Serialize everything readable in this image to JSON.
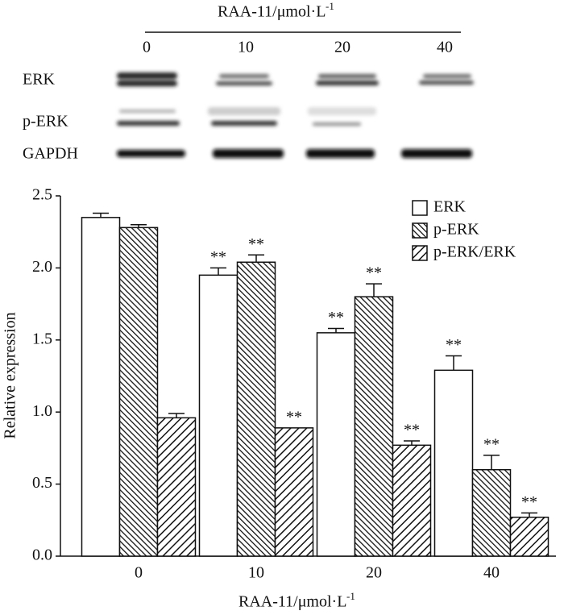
{
  "blot": {
    "title": "RAA-11/μmol·L",
    "title_sup": "-1",
    "lanes": [
      "0",
      "10",
      "20",
      "40"
    ],
    "rows": [
      "ERK",
      "p-ERK",
      "GAPDH"
    ]
  },
  "chart_data": {
    "type": "bar",
    "categories": [
      "0",
      "10",
      "20",
      "40"
    ],
    "x_label": "RAA-11/μmol·L",
    "x_label_sup": "-1",
    "y_label": "Relative expression",
    "ylim": [
      0,
      2.5
    ],
    "yticks": [
      {
        "value": 0,
        "label": "0.0"
      },
      {
        "value": 0.5,
        "label": "0.5"
      },
      {
        "value": 1,
        "label": "1.0"
      },
      {
        "value": 1.5,
        "label": "1.5"
      },
      {
        "value": 2,
        "label": "2.0"
      },
      {
        "value": 2.5,
        "label": "2.5"
      }
    ],
    "legend": "upper right",
    "series": [
      {
        "name": "ERK",
        "color": "#ffffff",
        "hatch": "none",
        "values": [
          2.35,
          1.95,
          1.55,
          1.29
        ],
        "errors": [
          0.03,
          0.05,
          0.03,
          0.1
        ],
        "annotations": [
          null,
          "**",
          "**",
          "**"
        ]
      },
      {
        "name": "p-ERK",
        "color": "#111111",
        "hatch": "backslash",
        "values": [
          2.28,
          2.04,
          1.8,
          0.6
        ],
        "errors": [
          0.02,
          0.05,
          0.09,
          0.1
        ],
        "annotations": [
          null,
          "**",
          "**",
          "**"
        ]
      },
      {
        "name": "p-ERK/ERK",
        "color": "#111111",
        "hatch": "slash",
        "values": [
          0.96,
          0.89,
          0.77,
          0.27
        ],
        "errors": [
          0.03,
          null,
          0.03,
          0.03
        ],
        "annotations": [
          null,
          "**",
          "**",
          "**"
        ]
      }
    ]
  }
}
